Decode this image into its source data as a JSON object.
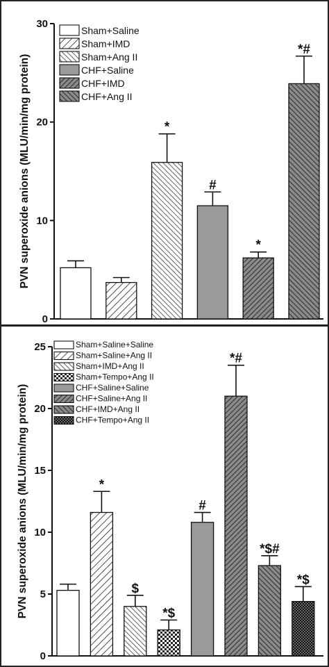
{
  "chart_data": [
    {
      "type": "bar",
      "ylabel": "PVN superoxide anions (MLU/min/mg protein)",
      "ylim": [
        0,
        30
      ],
      "yticks": [
        0,
        10,
        20,
        30
      ],
      "grid": false,
      "legend_position": "top-left",
      "categories": [
        "Sham+Saline",
        "Sham+IMD",
        "Sham+Ang II",
        "CHF+Saline",
        "CHF+IMD",
        "CHF+Ang II"
      ],
      "values": [
        5.2,
        3.7,
        15.9,
        11.5,
        6.2,
        23.9
      ],
      "errors": [
        0.7,
        0.5,
        2.9,
        1.4,
        0.6,
        2.8
      ],
      "annotations": [
        "",
        "",
        "*",
        "#",
        "*",
        "*#"
      ],
      "patterns": [
        "white",
        "diag-right",
        "diag-left-dense",
        "gray",
        "diag-right-dark",
        "diag-left-dark"
      ]
    },
    {
      "type": "bar",
      "ylabel": "PVN superoxide anions (MLU/min/mg protein)",
      "ylim": [
        0,
        25
      ],
      "yticks": [
        0,
        5,
        10,
        15,
        20,
        25
      ],
      "grid": false,
      "legend_position": "top-left",
      "categories": [
        "Sham+Saline+Saline",
        "Sham+Saline+Ang II",
        "Sham+IMD+Ang II",
        "Sham+Tempo+Ang II",
        "CHF+Saline+Saline",
        "CHF+Saline+Ang II",
        "CHF+IMD+Ang II",
        "CHF+Tempo+Ang II"
      ],
      "values": [
        5.3,
        11.6,
        4.0,
        2.1,
        10.8,
        21.0,
        7.3,
        4.4
      ],
      "errors": [
        0.5,
        1.7,
        0.9,
        0.8,
        0.8,
        2.5,
        0.8,
        1.2
      ],
      "annotations": [
        "",
        "*",
        "$",
        "*$",
        "#",
        "*#",
        "*$#",
        "*$"
      ],
      "patterns": [
        "white",
        "diag-right",
        "diag-left-dense",
        "checker",
        "gray",
        "diag-right-dark",
        "diag-left-dark",
        "checker-dark"
      ]
    }
  ]
}
